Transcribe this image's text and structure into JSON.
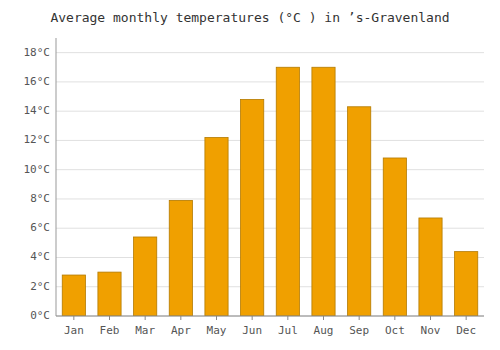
{
  "chart_data": {
    "type": "bar",
    "title": "Average monthly temperatures (°C ) in ’s-Gravenland",
    "categories": [
      "Jan",
      "Feb",
      "Mar",
      "Apr",
      "May",
      "Jun",
      "Jul",
      "Aug",
      "Sep",
      "Oct",
      "Nov",
      "Dec"
    ],
    "values": [
      2.8,
      3.0,
      5.4,
      7.9,
      12.2,
      14.8,
      17.0,
      17.0,
      14.3,
      10.8,
      6.7,
      4.4
    ],
    "color": "#F0A000",
    "ylim": [
      0,
      19
    ],
    "yticks": [
      {
        "value": 0,
        "label": "0°C"
      },
      {
        "value": 2,
        "label": "2°C"
      },
      {
        "value": 4,
        "label": "4°C"
      },
      {
        "value": 6,
        "label": "6°C"
      },
      {
        "value": 8,
        "label": "8°C"
      },
      {
        "value": 10,
        "label": "10°C"
      },
      {
        "value": 12,
        "label": "12°C"
      },
      {
        "value": 14,
        "label": "14°C"
      },
      {
        "value": 16,
        "label": "16°C"
      },
      {
        "value": 18,
        "label": "18°C"
      }
    ],
    "grid": true
  }
}
